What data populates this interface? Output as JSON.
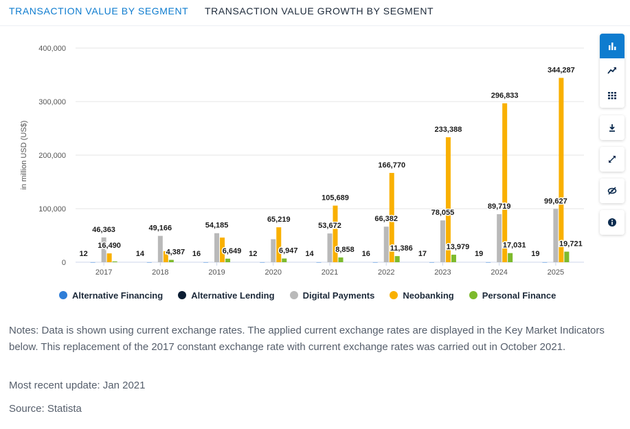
{
  "tabs": {
    "active": "TRANSACTION VALUE BY SEGMENT",
    "inactive": "TRANSACTION VALUE GROWTH BY SEGMENT"
  },
  "toolbar": {
    "icons": [
      "bar-chart-icon",
      "trend-icon",
      "table-icon",
      "download-icon",
      "expand-icon",
      "hide-icon",
      "info-icon"
    ]
  },
  "chart_data": {
    "type": "bar",
    "ylabel": "in million USD (US$)",
    "ylim": [
      0,
      400000
    ],
    "yticks": [
      "0",
      "100,000",
      "200,000",
      "300,000",
      "400,000"
    ],
    "grid": true,
    "legend_placement": "bottom",
    "categories": [
      "2017",
      "2018",
      "2019",
      "2020",
      "2021",
      "2022",
      "2023",
      "2024",
      "2025"
    ],
    "series": [
      {
        "name": "Alternative Financing",
        "color": "#2f7ed8",
        "values": [
          12,
          14,
          16,
          12,
          14,
          16,
          17,
          19,
          19
        ],
        "labels": [
          "12",
          "14",
          "16",
          "12",
          "14",
          "16",
          "17",
          "19",
          "19"
        ]
      },
      {
        "name": "Alternative Lending",
        "color": "#0b1d33",
        "values": [
          0,
          0,
          0,
          0,
          0,
          0,
          0,
          0,
          0
        ],
        "labels": []
      },
      {
        "name": "Digital Payments",
        "color": "#b9b9b9",
        "values": [
          46363,
          49166,
          54185,
          43000,
          53672,
          66382,
          78055,
          89719,
          99627
        ],
        "labels": [
          "46,363",
          "49,166",
          "54,185",
          "",
          "53,672",
          "66,382",
          "78,055",
          "89,719",
          "99,627"
        ]
      },
      {
        "name": "Neobanking",
        "color": "#f9b000",
        "values": [
          16490,
          20500,
          46000,
          65219,
          105689,
          166770,
          233388,
          296833,
          344287
        ],
        "labels": [
          "16,490",
          "",
          "",
          "65,219",
          "105,689",
          "166,770",
          "233,388",
          "296,833",
          "344,287"
        ]
      },
      {
        "name": "Personal Finance",
        "color": "#7dba2c",
        "values": [
          1500,
          4387,
          6649,
          6947,
          8858,
          11386,
          13979,
          17031,
          19721
        ],
        "labels": [
          "",
          "4,387",
          "6,649",
          "6,947",
          "8,858",
          "11,386",
          "13,979",
          "17,031",
          "19,721"
        ]
      }
    ]
  },
  "notes": "Notes: Data is shown using current exchange rates. The applied current exchange rates are displayed in the Key Market Indicators below. This replacement of the 2017 constant exchange rate with current exchange rates was carried out in October 2021.",
  "update": "Most recent update: Jan 2021",
  "source": "Source: Statista"
}
